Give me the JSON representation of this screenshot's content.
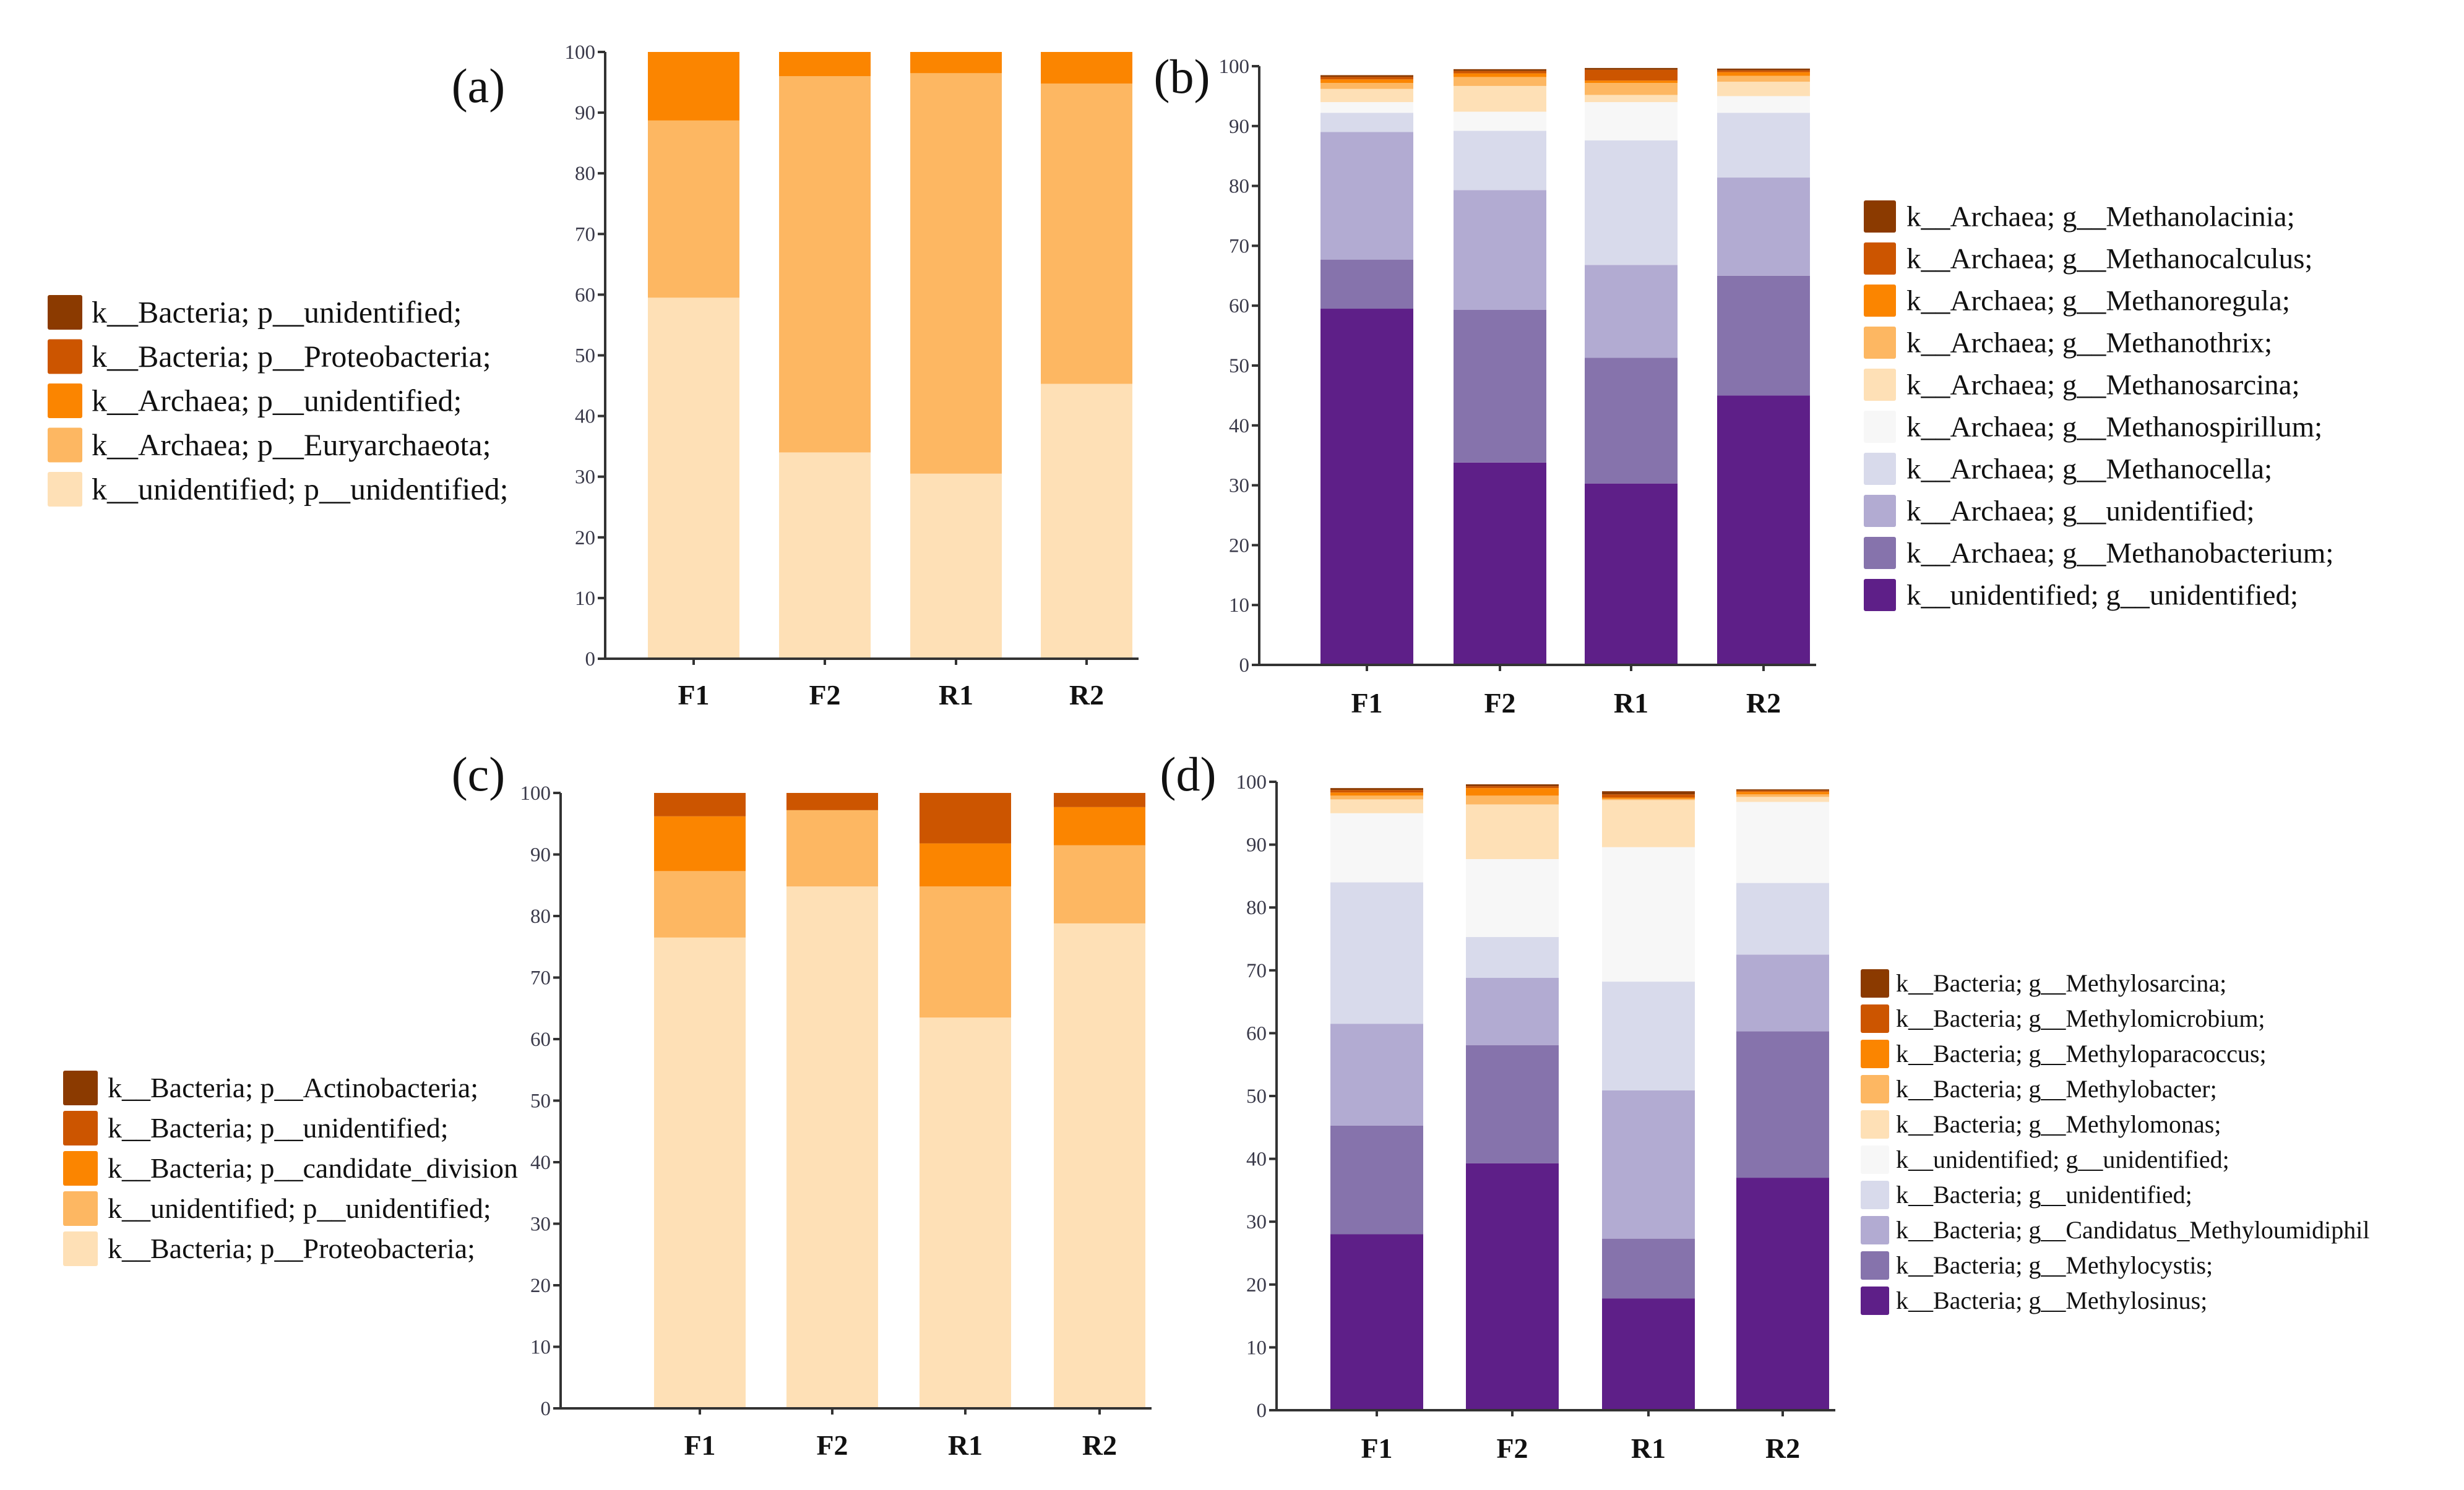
{
  "chart_data": [
    {
      "type": "bar",
      "stacked": true,
      "panel_label": "(a)",
      "categories": [
        "F1",
        "F2",
        "R1",
        "R2"
      ],
      "ylim": [
        0,
        100
      ],
      "yticks": [
        "0",
        "10",
        "20",
        "30",
        "40",
        "50",
        "60",
        "70",
        "80",
        "90",
        "100"
      ],
      "legend_position": "left",
      "series": [
        {
          "name": "k__Bacteria; p__unidentified;",
          "color": "#8B3A00",
          "values": [
            0,
            0,
            0,
            0
          ]
        },
        {
          "name": "k__Bacteria; p__Proteobacteria;",
          "color": "#CC5500",
          "values": [
            0,
            0,
            0,
            0
          ]
        },
        {
          "name": "k__Archaea; p__unidentified;",
          "color": "#FB8500",
          "values": [
            11.3,
            4.0,
            3.5,
            5.2
          ]
        },
        {
          "name": "k__Archaea; p__Euryarchaeota;",
          "color": "#FDB762",
          "values": [
            29.2,
            62.0,
            66.0,
            49.5
          ]
        },
        {
          "name": "k__unidentified; p__unidentified;",
          "color": "#FEE0B6",
          "values": [
            59.5,
            34.0,
            30.5,
            45.3
          ]
        }
      ]
    },
    {
      "type": "bar",
      "stacked": true,
      "panel_label": "(b)",
      "categories": [
        "F1",
        "F2",
        "R1",
        "R2"
      ],
      "ylim": [
        0,
        100
      ],
      "yticks": [
        "0",
        "10",
        "20",
        "30",
        "40",
        "50",
        "60",
        "70",
        "80",
        "90",
        "100"
      ],
      "legend_position": "right",
      "series": [
        {
          "name": "k__Archaea; g__Methanolacinia;",
          "color": "#8B3A00",
          "values": [
            0.3,
            0.3,
            0.3,
            0.3
          ]
        },
        {
          "name": "k__Archaea; g__Methanocalculus;",
          "color": "#CC5500",
          "values": [
            0.4,
            0.4,
            1.8,
            0.3
          ]
        },
        {
          "name": "k__Archaea; g__Methanoregula;",
          "color": "#FB8500",
          "values": [
            0.6,
            0.6,
            0.4,
            0.6
          ]
        },
        {
          "name": "k__Archaea; g__Methanothrix;",
          "color": "#FDB762",
          "values": [
            1.0,
            1.5,
            2.0,
            1.0
          ]
        },
        {
          "name": "k__Archaea; g__Methanosarcina;",
          "color": "#FEE0B6",
          "values": [
            2.2,
            4.3,
            1.2,
            2.4
          ]
        },
        {
          "name": "k__Archaea; g__Methanospirillum;",
          "color": "#F7F7F7",
          "values": [
            1.8,
            3.2,
            6.4,
            2.8
          ]
        },
        {
          "name": "k__Archaea; g__Methanocella;",
          "color": "#D8DAEB",
          "values": [
            3.2,
            9.9,
            20.8,
            10.8
          ]
        },
        {
          "name": "k__Archaea; g__unidentified;",
          "color": "#B2ABD2",
          "values": [
            21.3,
            20.0,
            15.5,
            16.4
          ]
        },
        {
          "name": "k__Archaea; g__Methanobacterium;",
          "color": "#8673AC",
          "values": [
            8.2,
            25.5,
            21.0,
            20.0
          ]
        },
        {
          "name": "k__unidentified; g__unidentified;",
          "color": "#5E1F88",
          "values": [
            59.5,
            33.8,
            30.3,
            45.0
          ]
        }
      ]
    },
    {
      "type": "bar",
      "stacked": true,
      "panel_label": "(c)",
      "categories": [
        "F1",
        "F2",
        "R1",
        "R2"
      ],
      "ylim": [
        0,
        100
      ],
      "yticks": [
        "0",
        "10",
        "20",
        "30",
        "40",
        "50",
        "60",
        "70",
        "80",
        "90",
        "100"
      ],
      "legend_position": "left",
      "series": [
        {
          "name": "k__Bacteria; p__Actinobacteria;",
          "color": "#8B3A00",
          "values": [
            0,
            0,
            0,
            0
          ]
        },
        {
          "name": "k__Bacteria; p__unidentified;",
          "color": "#CC5500",
          "values": [
            3.8,
            2.8,
            8.2,
            2.3
          ]
        },
        {
          "name": "k__Bacteria; p__candidate_division",
          "color": "#FB8500",
          "values": [
            8.9,
            0,
            7.0,
            6.2
          ]
        },
        {
          "name": "k__unidentified; p__unidentified;",
          "color": "#FDB762",
          "values": [
            10.8,
            12.4,
            21.3,
            12.7
          ]
        },
        {
          "name": "k__Bacteria; p__Proteobacteria;",
          "color": "#FEE0B6",
          "values": [
            76.5,
            84.8,
            63.5,
            78.8
          ]
        }
      ]
    },
    {
      "type": "bar",
      "stacked": true,
      "panel_label": "(d)",
      "categories": [
        "F1",
        "F2",
        "R1",
        "R2"
      ],
      "ylim": [
        0,
        100
      ],
      "yticks": [
        "0",
        "10",
        "20",
        "30",
        "40",
        "50",
        "60",
        "70",
        "80",
        "90",
        "100"
      ],
      "legend_position": "right",
      "series": [
        {
          "name": "k__Bacteria; g__Methylosarcina;",
          "color": "#8B3A00",
          "values": [
            0.3,
            0.3,
            0.5,
            0.2
          ]
        },
        {
          "name": "k__Bacteria; g__Methylomicrobium;",
          "color": "#CC5500",
          "values": [
            0.4,
            0.3,
            0.5,
            0.2
          ]
        },
        {
          "name": "k__Bacteria; g__Methyloparacoccus;",
          "color": "#FB8500",
          "values": [
            0.5,
            1.2,
            0.2,
            0.4
          ]
        },
        {
          "name": "k__Bacteria; g__Methylobacter;",
          "color": "#FDB762",
          "values": [
            0.6,
            1.4,
            0.2,
            0.4
          ]
        },
        {
          "name": "k__Bacteria; g__Methylomonas;",
          "color": "#FEE0B6",
          "values": [
            2.2,
            8.7,
            7.5,
            0.8
          ]
        },
        {
          "name": "k__unidentified; g__unidentified;",
          "color": "#F7F7F7",
          "values": [
            11.0,
            12.4,
            21.4,
            12.9
          ]
        },
        {
          "name": "k__Bacteria; g__unidentified;",
          "color": "#D8DAEB",
          "values": [
            22.5,
            6.5,
            17.3,
            11.4
          ]
        },
        {
          "name": "k__Bacteria; g__Candidatus_Methyloumidiphil",
          "color": "#B2ABD2",
          "values": [
            16.2,
            10.7,
            23.6,
            12.2
          ]
        },
        {
          "name": "k__Bacteria; g__Methylocystis;",
          "color": "#8673AC",
          "values": [
            17.3,
            18.8,
            9.5,
            23.3
          ]
        },
        {
          "name": "k__Bacteria; g__Methylosinus;",
          "color": "#5E1F88",
          "values": [
            28.0,
            39.3,
            17.8,
            37.0
          ]
        }
      ]
    }
  ]
}
